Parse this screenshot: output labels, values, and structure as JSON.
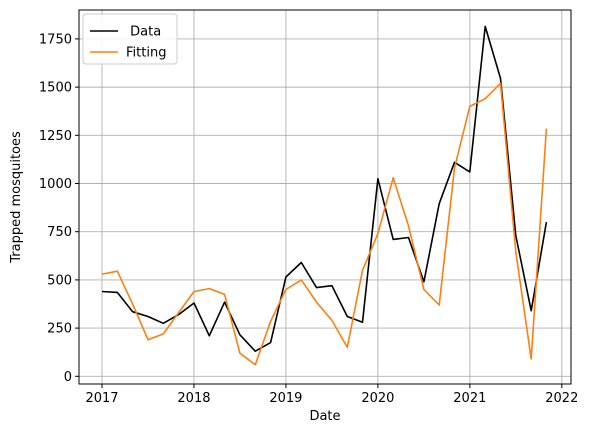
{
  "chart_data": {
    "type": "line",
    "xlabel": "Date",
    "ylabel": "Trapped mosquitoes",
    "grid": true,
    "legend_position": "top-left",
    "xlim": [
      2016.75,
      2022.1
    ],
    "ylim": [
      -40,
      1900
    ],
    "x_ticks": [
      2017,
      2018,
      2019,
      2020,
      2021,
      2022
    ],
    "x_tick_labels": [
      "2017",
      "2018",
      "2019",
      "2020",
      "2021",
      "2022"
    ],
    "y_ticks": [
      0,
      250,
      500,
      750,
      1000,
      1250,
      1500,
      1750
    ],
    "y_tick_labels": [
      "0",
      "250",
      "500",
      "750",
      "1000",
      "1250",
      "1500",
      "1750"
    ],
    "x": [
      2017.0,
      2017.167,
      2017.333,
      2017.5,
      2017.667,
      2017.833,
      2018.0,
      2018.167,
      2018.333,
      2018.5,
      2018.667,
      2018.833,
      2019.0,
      2019.167,
      2019.333,
      2019.5,
      2019.667,
      2019.833,
      2020.0,
      2020.167,
      2020.333,
      2020.5,
      2020.667,
      2020.833,
      2021.0,
      2021.167,
      2021.333,
      2021.5,
      2021.667,
      2021.833
    ],
    "series": [
      {
        "name": " Data",
        "color": "#000000",
        "values": [
          440,
          435,
          335,
          310,
          275,
          320,
          380,
          210,
          385,
          215,
          130,
          175,
          515,
          590,
          460,
          470,
          310,
          280,
          1025,
          710,
          720,
          490,
          895,
          1110,
          1060,
          1815,
          1545,
          730,
          340,
          800
        ]
      },
      {
        "name": "Fitting",
        "color": "#ff7f0e",
        "values": [
          530,
          545,
          375,
          190,
          220,
          330,
          440,
          455,
          425,
          120,
          60,
          285,
          450,
          500,
          385,
          290,
          150,
          550,
          740,
          1030,
          780,
          450,
          370,
          1080,
          1400,
          1440,
          1520,
          645,
          90,
          1285
        ]
      }
    ]
  }
}
